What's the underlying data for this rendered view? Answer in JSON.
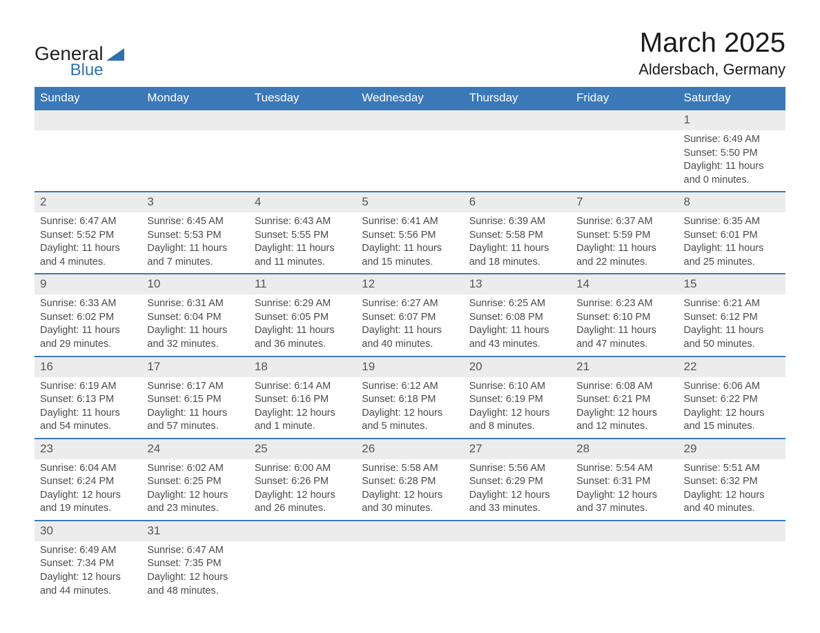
{
  "brand": {
    "line1": "General",
    "line2": "Blue",
    "logo_color": "#2f6fb0"
  },
  "title": "March 2025",
  "location": "Aldersbach, Germany",
  "header_bg": "#3b78b8",
  "daynum_bg": "#ececec",
  "row_border": "#3b78b8",
  "text_color": "#4a4a4a",
  "columns": [
    "Sunday",
    "Monday",
    "Tuesday",
    "Wednesday",
    "Thursday",
    "Friday",
    "Saturday"
  ],
  "weeks": [
    [
      null,
      null,
      null,
      null,
      null,
      null,
      {
        "n": "1",
        "sr": "6:49 AM",
        "ss": "5:50 PM",
        "dl": "11 hours and 0 minutes."
      }
    ],
    [
      {
        "n": "2",
        "sr": "6:47 AM",
        "ss": "5:52 PM",
        "dl": "11 hours and 4 minutes."
      },
      {
        "n": "3",
        "sr": "6:45 AM",
        "ss": "5:53 PM",
        "dl": "11 hours and 7 minutes."
      },
      {
        "n": "4",
        "sr": "6:43 AM",
        "ss": "5:55 PM",
        "dl": "11 hours and 11 minutes."
      },
      {
        "n": "5",
        "sr": "6:41 AM",
        "ss": "5:56 PM",
        "dl": "11 hours and 15 minutes."
      },
      {
        "n": "6",
        "sr": "6:39 AM",
        "ss": "5:58 PM",
        "dl": "11 hours and 18 minutes."
      },
      {
        "n": "7",
        "sr": "6:37 AM",
        "ss": "5:59 PM",
        "dl": "11 hours and 22 minutes."
      },
      {
        "n": "8",
        "sr": "6:35 AM",
        "ss": "6:01 PM",
        "dl": "11 hours and 25 minutes."
      }
    ],
    [
      {
        "n": "9",
        "sr": "6:33 AM",
        "ss": "6:02 PM",
        "dl": "11 hours and 29 minutes."
      },
      {
        "n": "10",
        "sr": "6:31 AM",
        "ss": "6:04 PM",
        "dl": "11 hours and 32 minutes."
      },
      {
        "n": "11",
        "sr": "6:29 AM",
        "ss": "6:05 PM",
        "dl": "11 hours and 36 minutes."
      },
      {
        "n": "12",
        "sr": "6:27 AM",
        "ss": "6:07 PM",
        "dl": "11 hours and 40 minutes."
      },
      {
        "n": "13",
        "sr": "6:25 AM",
        "ss": "6:08 PM",
        "dl": "11 hours and 43 minutes."
      },
      {
        "n": "14",
        "sr": "6:23 AM",
        "ss": "6:10 PM",
        "dl": "11 hours and 47 minutes."
      },
      {
        "n": "15",
        "sr": "6:21 AM",
        "ss": "6:12 PM",
        "dl": "11 hours and 50 minutes."
      }
    ],
    [
      {
        "n": "16",
        "sr": "6:19 AM",
        "ss": "6:13 PM",
        "dl": "11 hours and 54 minutes."
      },
      {
        "n": "17",
        "sr": "6:17 AM",
        "ss": "6:15 PM",
        "dl": "11 hours and 57 minutes."
      },
      {
        "n": "18",
        "sr": "6:14 AM",
        "ss": "6:16 PM",
        "dl": "12 hours and 1 minute."
      },
      {
        "n": "19",
        "sr": "6:12 AM",
        "ss": "6:18 PM",
        "dl": "12 hours and 5 minutes."
      },
      {
        "n": "20",
        "sr": "6:10 AM",
        "ss": "6:19 PM",
        "dl": "12 hours and 8 minutes."
      },
      {
        "n": "21",
        "sr": "6:08 AM",
        "ss": "6:21 PM",
        "dl": "12 hours and 12 minutes."
      },
      {
        "n": "22",
        "sr": "6:06 AM",
        "ss": "6:22 PM",
        "dl": "12 hours and 15 minutes."
      }
    ],
    [
      {
        "n": "23",
        "sr": "6:04 AM",
        "ss": "6:24 PM",
        "dl": "12 hours and 19 minutes."
      },
      {
        "n": "24",
        "sr": "6:02 AM",
        "ss": "6:25 PM",
        "dl": "12 hours and 23 minutes."
      },
      {
        "n": "25",
        "sr": "6:00 AM",
        "ss": "6:26 PM",
        "dl": "12 hours and 26 minutes."
      },
      {
        "n": "26",
        "sr": "5:58 AM",
        "ss": "6:28 PM",
        "dl": "12 hours and 30 minutes."
      },
      {
        "n": "27",
        "sr": "5:56 AM",
        "ss": "6:29 PM",
        "dl": "12 hours and 33 minutes."
      },
      {
        "n": "28",
        "sr": "5:54 AM",
        "ss": "6:31 PM",
        "dl": "12 hours and 37 minutes."
      },
      {
        "n": "29",
        "sr": "5:51 AM",
        "ss": "6:32 PM",
        "dl": "12 hours and 40 minutes."
      }
    ],
    [
      {
        "n": "30",
        "sr": "6:49 AM",
        "ss": "7:34 PM",
        "dl": "12 hours and 44 minutes."
      },
      {
        "n": "31",
        "sr": "6:47 AM",
        "ss": "7:35 PM",
        "dl": "12 hours and 48 minutes."
      },
      null,
      null,
      null,
      null,
      null
    ]
  ],
  "labels": {
    "sunrise": "Sunrise: ",
    "sunset": "Sunset: ",
    "daylight": "Daylight: "
  }
}
